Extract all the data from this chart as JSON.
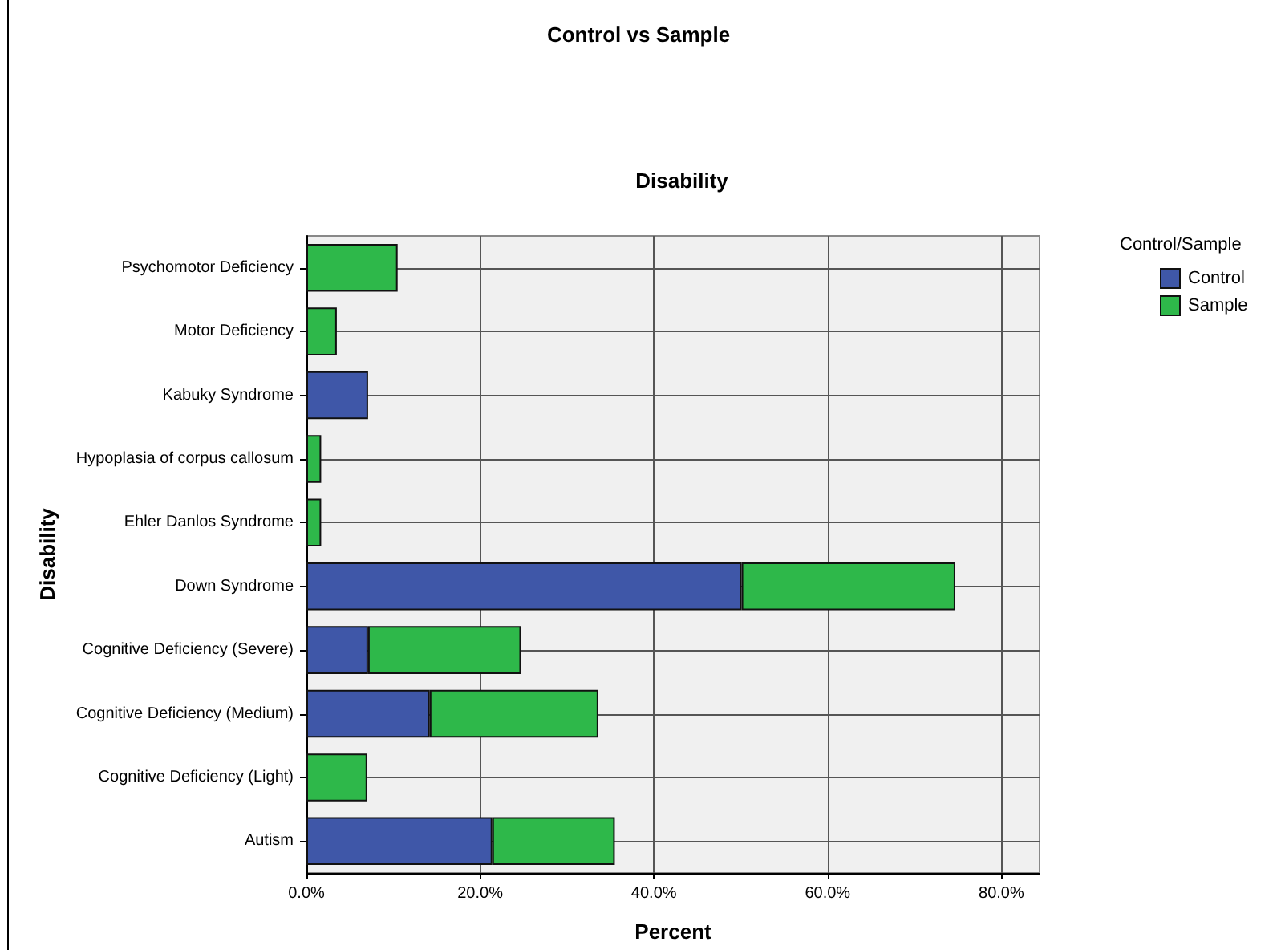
{
  "chart_data": {
    "type": "bar",
    "orientation": "horizontal",
    "stacked": true,
    "title": "Control vs Sample",
    "subtitle": "Disability",
    "xlabel": "Percent",
    "ylabel": "Disability",
    "legend_title": "Control/Sample",
    "legend": "top right",
    "grid": true,
    "categories": [
      "Psychomotor Deficiency",
      "Motor Deficiency",
      "Kabuky Syndrome",
      "Hypoplasia of corpus callosum",
      "Ehler Danlos Syndrome",
      "Down Syndrome",
      "Cognitive Deficiency (Severe)",
      "Cognitive Deficiency (Medium)",
      "Cognitive Deficiency (Light)",
      "Autism"
    ],
    "series": [
      {
        "name": "Control",
        "color": "#3f57a8",
        "values": [
          null,
          null,
          7.1,
          null,
          null,
          50.1,
          7.1,
          14.2,
          null,
          21.4
        ]
      },
      {
        "name": "Sample",
        "color": "#2eb84a",
        "values": [
          10.5,
          3.5,
          null,
          1.7,
          1.7,
          24.6,
          17.6,
          19.4,
          7.0,
          14.1
        ]
      }
    ],
    "xlim": [
      0,
      84.4
    ],
    "xticks": [
      {
        "value": 0,
        "label": "0.0%"
      },
      {
        "value": 20,
        "label": "20.0%"
      },
      {
        "value": 40,
        "label": "40.0%"
      },
      {
        "value": 60,
        "label": "60.0%"
      },
      {
        "value": 80,
        "label": "80.0%"
      }
    ]
  }
}
